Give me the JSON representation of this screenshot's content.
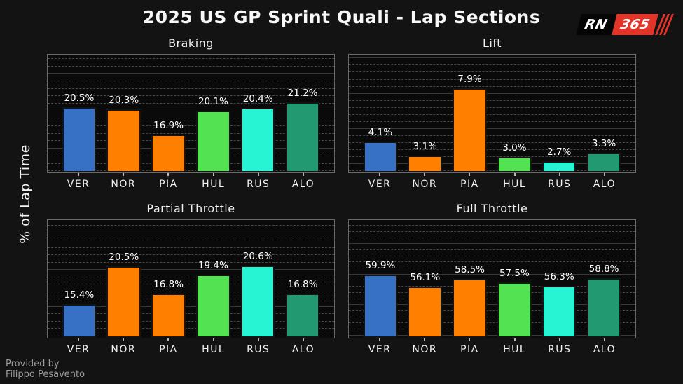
{
  "header": {
    "title": "2025 US GP Sprint Quali - Lap Sections",
    "logo_rn": "RN",
    "logo_365": "365"
  },
  "ylabel": "% of Lap Time",
  "credit": {
    "line1": "Provided by",
    "line2": "Filippo Pesavento"
  },
  "drivers": [
    "VER",
    "NOR",
    "PIA",
    "HUL",
    "RUS",
    "ALO"
  ],
  "team_colors": {
    "VER": "#3671C6",
    "NOR": "#FF8000",
    "PIA": "#FF8000",
    "HUL": "#52E252",
    "RUS": "#27F4D2",
    "ALO": "#229971"
  },
  "style_colors": {
    "figure_background": "#131313",
    "plot_background": "#0a0a0a",
    "spine": "#6a6a6a",
    "minor_grid": "#474747",
    "major_grid": "#383838",
    "text": "#f7f7f7",
    "credit_text": "#9c9c9c",
    "logo_red": "#e3342a"
  },
  "chart_data": [
    {
      "type": "bar",
      "title": "Braking",
      "categories": [
        "VER",
        "NOR",
        "PIA",
        "HUL",
        "RUS",
        "ALO"
      ],
      "values": [
        20.5,
        20.3,
        16.9,
        20.1,
        20.4,
        21.2
      ],
      "unit": "%",
      "ylabel": "% of Lap Time",
      "ylim": [
        11.83,
        27.56
      ],
      "grid": {
        "minor_step": 1,
        "major_step": 5,
        "minor_style": "dashed",
        "major_style": "solid"
      },
      "legend": "none"
    },
    {
      "type": "bar",
      "title": "Lift",
      "categories": [
        "VER",
        "NOR",
        "PIA",
        "HUL",
        "RUS",
        "ALO"
      ],
      "values": [
        4.1,
        3.1,
        7.9,
        3.0,
        2.7,
        3.3
      ],
      "unit": "%",
      "ylabel": "% of Lap Time",
      "ylim": [
        1.89,
        10.27
      ],
      "grid": {
        "minor_step": 0.5,
        "major_step": 2.5,
        "minor_style": "dashed",
        "major_style": "solid"
      },
      "legend": "none"
    },
    {
      "type": "bar",
      "title": "Partial Throttle",
      "categories": [
        "VER",
        "NOR",
        "PIA",
        "HUL",
        "RUS",
        "ALO"
      ],
      "values": [
        15.4,
        20.5,
        16.8,
        19.4,
        20.6,
        16.8
      ],
      "unit": "%",
      "ylabel": "% of Lap Time",
      "ylim": [
        10.78,
        26.78
      ],
      "grid": {
        "minor_step": 1,
        "major_step": 5,
        "minor_style": "dashed",
        "major_style": "solid"
      },
      "legend": "none"
    },
    {
      "type": "bar",
      "title": "Full Throttle",
      "categories": [
        "VER",
        "NOR",
        "PIA",
        "HUL",
        "RUS",
        "ALO"
      ],
      "values": [
        59.9,
        56.1,
        58.5,
        57.5,
        56.3,
        58.8
      ],
      "unit": "%",
      "ylabel": "% of Lap Time",
      "ylim": [
        39.27,
        77.87
      ],
      "grid": {
        "minor_step": 2,
        "major_step": 10,
        "minor_style": "dashed",
        "major_style": "solid"
      },
      "legend": "none"
    }
  ]
}
